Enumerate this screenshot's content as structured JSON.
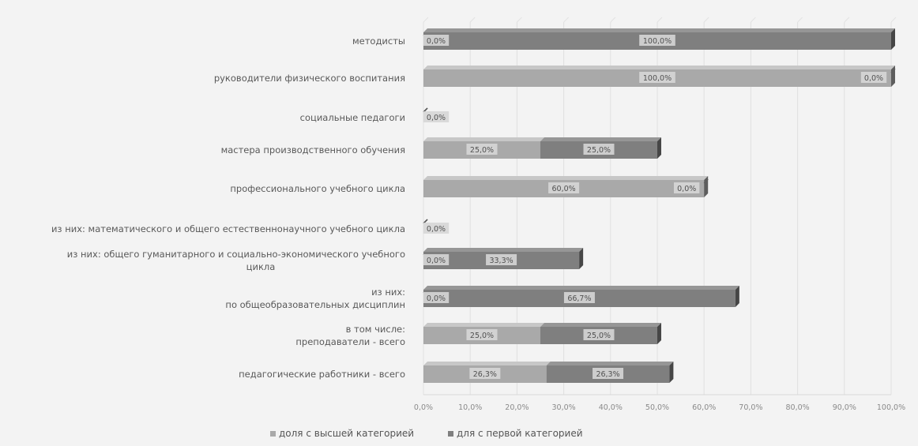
{
  "chart_data": {
    "type": "bar",
    "orientation": "horizontal",
    "stacked": true,
    "three_d": true,
    "categories": [
      "педагогические работники - всего",
      "в том числе:\nпреподаватели - всего",
      "из них:\nпо общеобразовательных дисциплин",
      "из них: общего гуманитарного и социально-экономического учебного\nцикла",
      "из них: математического и общего естественнонаучного учебного цикла",
      "профессионального учебного цикла",
      "мастера производственного обучения",
      "социальные педагоги",
      "руководители физического воспитания",
      "методисты"
    ],
    "series": [
      {
        "name": "доля с высшей категорией",
        "color": "#a9a9a9",
        "values": [
          26.3,
          25.0,
          0.0,
          0.0,
          0.0,
          60.0,
          25.0,
          0.0,
          100.0,
          0.0
        ],
        "labels": [
          "26,3%",
          "25,0%",
          "0,0%",
          "0,0%",
          "0,0%",
          "60,0%",
          "25,0%",
          "0,0%",
          "100,0%",
          "0,0%"
        ]
      },
      {
        "name": "для с первой категорией",
        "color": "#7f7f7f",
        "values": [
          26.3,
          25.0,
          66.7,
          33.3,
          0.0,
          0.0,
          25.0,
          0.0,
          0.0,
          100.0
        ],
        "labels": [
          "26,3%",
          "25,0%",
          "66,7%",
          "33,3%",
          "0,0%",
          "0,0%",
          "25,0%",
          "0,0%",
          "0,0%",
          "100,0%"
        ]
      }
    ],
    "xlim": [
      0,
      100
    ],
    "xticks": [
      "0,0%",
      "10,0%",
      "20,0%",
      "30,0%",
      "40,0%",
      "50,0%",
      "60,0%",
      "70,0%",
      "80,0%",
      "90,0%",
      "100,0%"
    ],
    "grid": "vertical",
    "legend": "bottom",
    "title": "",
    "xlabel": "",
    "ylabel": ""
  }
}
